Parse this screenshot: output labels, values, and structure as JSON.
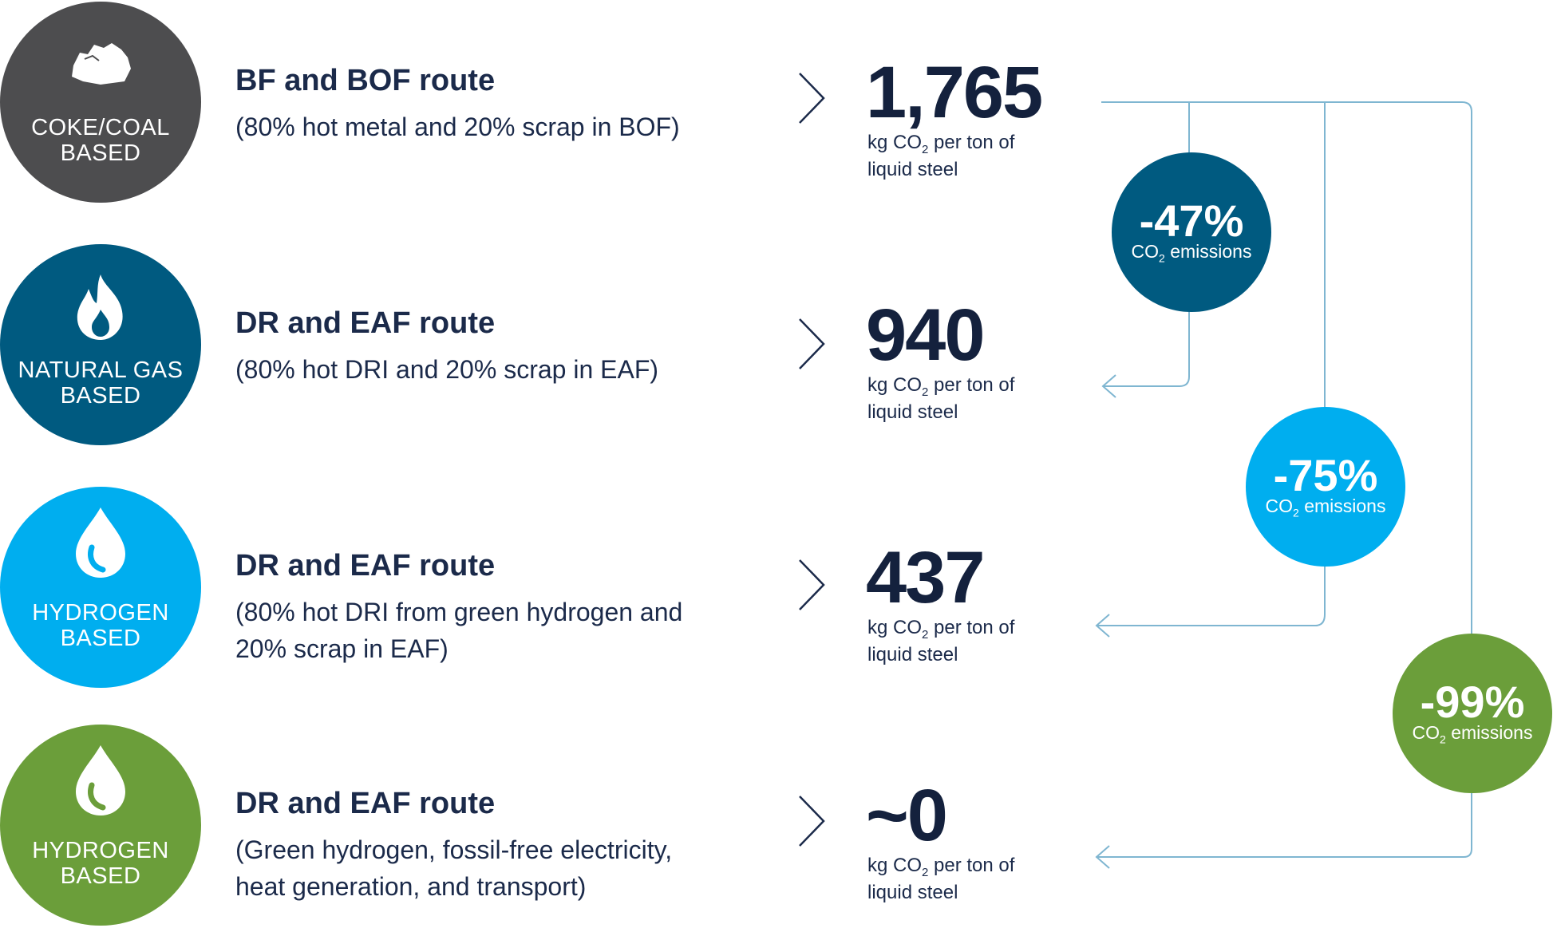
{
  "colors": {
    "coal": "#4d4d4f",
    "gas": "#005a80",
    "hydrogen_blue": "#00aeef",
    "hydrogen_green": "#6b9e3a",
    "text_dark": "#1b2a4a",
    "connector": "#7fb6d1"
  },
  "routes": [
    {
      "category": [
        "COKE/COAL",
        "BASED"
      ],
      "icon": "coal-icon",
      "title": "BF and BOF route",
      "description": [
        "(80% hot metal and 20% scrap in BOF)"
      ],
      "value": "1,765",
      "unit_prefix": "kg CO",
      "unit_sub": "2",
      "unit_suffix": " per ton of",
      "unit_line2": "liquid steel"
    },
    {
      "category": [
        "NATURAL GAS",
        "BASED"
      ],
      "icon": "flame-icon",
      "title": "DR and EAF route",
      "description": [
        "(80% hot DRI and 20% scrap in EAF)"
      ],
      "value": "940",
      "unit_prefix": "kg CO",
      "unit_sub": "2",
      "unit_suffix": " per ton of",
      "unit_line2": "liquid steel"
    },
    {
      "category": [
        "HYDROGEN",
        "BASED"
      ],
      "icon": "water-drop-icon",
      "title": "DR and EAF route",
      "description": [
        "(80% hot DRI from green hydrogen and",
        "20% scrap in EAF)"
      ],
      "value": "437",
      "unit_prefix": "kg CO",
      "unit_sub": "2",
      "unit_suffix": " per ton of",
      "unit_line2": "liquid steel"
    },
    {
      "category": [
        "HYDROGEN",
        "BASED"
      ],
      "icon": "water-drop-icon",
      "title": "DR and EAF route",
      "description": [
        "(Green hydrogen, fossil-free electricity,",
        "heat generation, and transport)"
      ],
      "value": "~0",
      "unit_prefix": "kg CO",
      "unit_sub": "2",
      "unit_suffix": " per ton of",
      "unit_line2": "liquid steel"
    }
  ],
  "reductions": [
    {
      "percent": "-47%",
      "label_prefix": "CO",
      "label_sub": "2",
      "label_suffix": " emissions"
    },
    {
      "percent": "-75%",
      "label_prefix": "CO",
      "label_sub": "2",
      "label_suffix": " emissions"
    },
    {
      "percent": "-99%",
      "label_prefix": "CO",
      "label_sub": "2",
      "label_suffix": " emissions"
    }
  ]
}
